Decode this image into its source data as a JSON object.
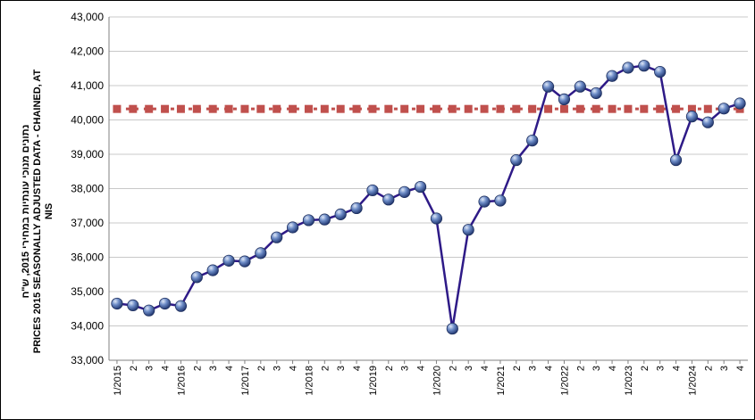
{
  "chart_data": {
    "type": "line",
    "ylabel_lines": [
      "נתונים מנוכי עונתיות במחירי 2015, ש\"ח",
      "PRICES 2015 SEASONALLY ADJUSTED DATA - CHAINED, AT",
      "NIS"
    ],
    "ylim": [
      33000,
      43000
    ],
    "yticks": [
      33000,
      34000,
      35000,
      36000,
      37000,
      38000,
      39000,
      40000,
      41000,
      42000,
      43000
    ],
    "ytick_labels": [
      "33,000",
      "34,000",
      "35,000",
      "36,000",
      "37,000",
      "38,000",
      "39,000",
      "40,000",
      "41,000",
      "42,000",
      "43,000"
    ],
    "grid": true,
    "categories": [
      "1/2015",
      "2",
      "3",
      "4",
      "1/2016",
      "2",
      "3",
      "4",
      "1/2017",
      "2",
      "3",
      "4",
      "1/2018",
      "2",
      "3",
      "4",
      "1/2019",
      "2",
      "3",
      "4",
      "1/2020",
      "2",
      "3",
      "4",
      "1/2021",
      "2",
      "3",
      "4",
      "1/2022",
      "2",
      "3",
      "4",
      "1/2023",
      "2",
      "3",
      "4",
      "1/2024",
      "2",
      "3",
      "4"
    ],
    "series": [
      {
        "style": "line-markers",
        "color": "#2e1a87",
        "marker_color": "#5a78b8",
        "values": [
          34650,
          34600,
          34450,
          34650,
          34580,
          35420,
          35620,
          35900,
          35880,
          36120,
          36580,
          36870,
          37080,
          37100,
          37250,
          37430,
          37950,
          37680,
          37900,
          38050,
          37130,
          33920,
          36800,
          37620,
          37650,
          38830,
          39400,
          40970,
          40600,
          40970,
          40780,
          41280,
          41520,
          41580,
          41400,
          38830,
          40100,
          39930,
          40330,
          40480
        ]
      },
      {
        "style": "dashed-markers",
        "color": "#c0504d",
        "values": [
          40320,
          40320,
          40320,
          40320,
          40320,
          40320,
          40320,
          40320,
          40320,
          40320,
          40320,
          40320,
          40320,
          40320,
          40320,
          40320,
          40320,
          40320,
          40320,
          40320,
          40320,
          40320,
          40320,
          40320,
          40320,
          40320,
          40320,
          40320,
          40320,
          40320,
          40320,
          40320,
          40320,
          40320,
          40320,
          40320,
          40320,
          40320,
          40320,
          40320
        ]
      }
    ]
  }
}
